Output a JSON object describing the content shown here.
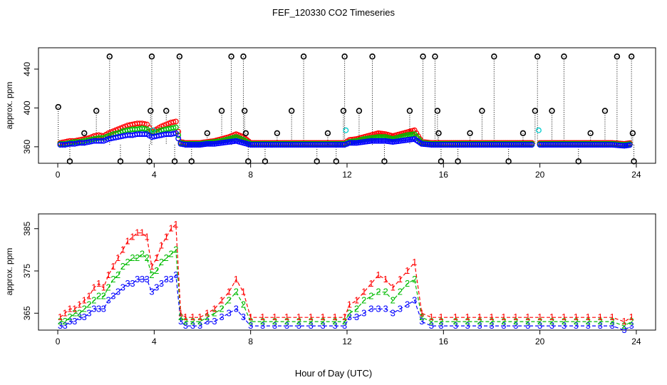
{
  "figure": {
    "title": "FEF_120330  CO2 Timeseries",
    "xlabel": "Hour of Day (UTC)"
  },
  "colors": {
    "series_0": "#000000",
    "series_1": "#ff0000",
    "series_2": "#00bb00",
    "series_3": "#0000ff",
    "series_cyan": "#00cccc"
  },
  "chart_data": [
    {
      "type": "scatter",
      "title": "FEF_120330  CO2 Timeseries",
      "xlabel": "",
      "ylabel": "approx. ppm",
      "xlim": [
        -0.8,
        24.8
      ],
      "ylim": [
        343,
        462
      ],
      "xticks": [
        0,
        4,
        8,
        12,
        16,
        20,
        24
      ],
      "xtick_labels": [
        "0",
        "4",
        "8",
        "12",
        "16",
        "20",
        "24"
      ],
      "yticks": [
        360,
        400,
        440
      ],
      "ytick_labels": [
        "360",
        "400",
        "440"
      ],
      "marker": "o",
      "baseline_series": {
        "name": "0",
        "x": [
          0.02,
          0.5,
          1.1,
          1.6,
          2.15,
          2.6,
          3.8,
          3.85,
          3.9,
          4.5,
          4.85,
          5.05,
          5.55,
          6.2,
          6.8,
          7.2,
          7.7,
          7.75,
          7.8,
          7.9,
          8.6,
          9.1,
          9.7,
          10.2,
          10.75,
          11.2,
          11.55,
          11.85,
          11.9,
          12.5,
          13.05,
          13.55,
          14.6,
          15.15,
          15.65,
          15.75,
          15.8,
          15.9,
          16.6,
          17.1,
          17.6,
          18.1,
          18.7,
          19.3,
          19.8,
          19.9,
          20.5,
          21.0,
          21.6,
          22.1,
          22.7,
          23.2,
          23.8,
          23.85,
          23.9
        ],
        "y": [
          401,
          345,
          374,
          397,
          453,
          345,
          345,
          397,
          453,
          397,
          345,
          453,
          345,
          374,
          397,
          453,
          453,
          397,
          374,
          345,
          345,
          374,
          397,
          453,
          345,
          374,
          345,
          397,
          453,
          397,
          453,
          345,
          397,
          453,
          453,
          397,
          374,
          345,
          345,
          374,
          397,
          453,
          345,
          374,
          397,
          453,
          397,
          453,
          345,
          374,
          397,
          453,
          453,
          374,
          345
        ]
      },
      "series": [
        {
          "name": "1",
          "x": [
            0.1,
            0.3,
            0.5,
            0.7,
            0.9,
            1.1,
            1.3,
            1.5,
            1.7,
            1.9,
            2.1,
            2.3,
            2.5,
            2.7,
            2.9,
            3.1,
            3.3,
            3.5,
            3.7,
            3.9,
            4.1,
            4.3,
            4.5,
            4.7,
            4.9,
            5.1,
            5.3,
            5.6,
            5.9,
            6.2,
            6.5,
            6.8,
            7.1,
            7.4,
            7.7,
            8.0,
            8.5,
            9.0,
            9.5,
            10.0,
            10.5,
            11.0,
            11.5,
            11.9,
            12.1,
            12.4,
            12.7,
            13.0,
            13.3,
            13.6,
            13.9,
            14.2,
            14.5,
            14.8,
            15.1,
            15.5,
            15.9,
            16.5,
            17.0,
            17.5,
            18.0,
            18.5,
            19.0,
            19.5,
            20.0,
            20.5,
            21.0,
            21.5,
            22.0,
            22.5,
            23.0,
            23.5,
            23.8
          ],
          "y": [
            364,
            365,
            366,
            366,
            367,
            368,
            369,
            371,
            372,
            371,
            374,
            376,
            378,
            380,
            382,
            383,
            384,
            384,
            383,
            376,
            378,
            381,
            383,
            385,
            386,
            365,
            364,
            364,
            364,
            365,
            366,
            368,
            370,
            373,
            370,
            364,
            364,
            364,
            364,
            364,
            364,
            364,
            364,
            364,
            367,
            368,
            370,
            372,
            374,
            373,
            371,
            373,
            375,
            377,
            365,
            364,
            364,
            364,
            364,
            364,
            364,
            364,
            364,
            364,
            364,
            364,
            364,
            364,
            364,
            364,
            364,
            363,
            364
          ]
        },
        {
          "name": "2",
          "x": [
            0.1,
            0.3,
            0.5,
            0.7,
            0.9,
            1.1,
            1.3,
            1.5,
            1.7,
            1.9,
            2.1,
            2.3,
            2.5,
            2.7,
            2.9,
            3.1,
            3.3,
            3.5,
            3.7,
            3.9,
            4.1,
            4.3,
            4.5,
            4.7,
            4.9,
            5.1,
            5.3,
            5.6,
            5.9,
            6.2,
            6.5,
            6.8,
            7.1,
            7.4,
            7.7,
            8.0,
            8.5,
            9.0,
            9.5,
            10.0,
            10.5,
            11.0,
            11.5,
            11.9,
            12.1,
            12.4,
            12.7,
            13.0,
            13.3,
            13.6,
            13.9,
            14.2,
            14.5,
            14.8,
            15.1,
            15.5,
            15.9,
            16.5,
            17.0,
            17.5,
            18.0,
            18.5,
            19.0,
            19.5,
            20.0,
            20.5,
            21.0,
            21.5,
            22.0,
            22.5,
            23.0,
            23.5,
            23.8
          ],
          "y": [
            363,
            363,
            364,
            365,
            365,
            366,
            367,
            368,
            369,
            369,
            371,
            373,
            374,
            376,
            377,
            378,
            378,
            379,
            378,
            374,
            375,
            377,
            378,
            379,
            380,
            364,
            363,
            363,
            363,
            364,
            365,
            366,
            368,
            370,
            367,
            363,
            363,
            363,
            363,
            363,
            363,
            363,
            363,
            363,
            365,
            366,
            368,
            369,
            370,
            370,
            368,
            370,
            372,
            373,
            364,
            363,
            363,
            363,
            363,
            363,
            363,
            363,
            363,
            363,
            363,
            363,
            363,
            363,
            363,
            363,
            363,
            362,
            363
          ]
        },
        {
          "name": "3",
          "x": [
            0.1,
            0.3,
            0.5,
            0.7,
            0.9,
            1.1,
            1.3,
            1.5,
            1.7,
            1.9,
            2.1,
            2.3,
            2.5,
            2.7,
            2.9,
            3.1,
            3.3,
            3.5,
            3.7,
            3.9,
            4.1,
            4.3,
            4.5,
            4.7,
            4.9,
            5.1,
            5.3,
            5.6,
            5.9,
            6.2,
            6.5,
            6.8,
            7.1,
            7.4,
            7.7,
            8.0,
            8.5,
            9.0,
            9.5,
            10.0,
            10.5,
            11.0,
            11.5,
            11.9,
            12.1,
            12.4,
            12.7,
            13.0,
            13.3,
            13.6,
            13.9,
            14.2,
            14.5,
            14.8,
            15.1,
            15.5,
            15.9,
            16.5,
            17.0,
            17.5,
            18.0,
            18.5,
            19.0,
            19.5,
            20.0,
            20.5,
            21.0,
            21.5,
            22.0,
            22.5,
            23.0,
            23.5,
            23.8
          ],
          "y": [
            362,
            362,
            363,
            363,
            364,
            364,
            365,
            366,
            366,
            366,
            368,
            369,
            370,
            371,
            372,
            372,
            373,
            373,
            373,
            370,
            371,
            372,
            373,
            373,
            374,
            363,
            362,
            362,
            362,
            363,
            363,
            364,
            365,
            366,
            364,
            362,
            362,
            362,
            362,
            362,
            362,
            362,
            362,
            362,
            364,
            364,
            365,
            366,
            366,
            366,
            365,
            366,
            367,
            368,
            363,
            362,
            362,
            362,
            362,
            362,
            362,
            362,
            362,
            362,
            362,
            362,
            362,
            362,
            362,
            362,
            362,
            361,
            362
          ]
        },
        {
          "name": "cyan",
          "x": [
            3.95,
            11.95,
            19.95
          ],
          "y": [
            377,
            377,
            377
          ]
        }
      ]
    },
    {
      "type": "line",
      "title": "",
      "xlabel": "Hour of Day (UTC)",
      "ylabel": "approx. ppm",
      "xlim": [
        -0.8,
        24.8
      ],
      "ylim": [
        361,
        388.5
      ],
      "xticks": [
        0,
        4,
        8,
        12,
        16,
        20,
        24
      ],
      "xtick_labels": [
        "0",
        "4",
        "8",
        "12",
        "16",
        "20",
        "24"
      ],
      "yticks": [
        365,
        375,
        385
      ],
      "ytick_labels": [
        "365",
        "375",
        "385"
      ],
      "marker": "series number",
      "series": [
        {
          "name": "1",
          "x": [
            0.1,
            0.3,
            0.5,
            0.7,
            0.9,
            1.1,
            1.3,
            1.5,
            1.7,
            1.9,
            2.1,
            2.3,
            2.5,
            2.7,
            2.9,
            3.1,
            3.3,
            3.5,
            3.7,
            3.9,
            4.1,
            4.3,
            4.5,
            4.7,
            4.9,
            5.1,
            5.3,
            5.6,
            5.9,
            6.2,
            6.5,
            6.8,
            7.1,
            7.4,
            7.7,
            8.0,
            8.5,
            9.0,
            9.5,
            10.0,
            10.5,
            11.0,
            11.5,
            11.9,
            12.1,
            12.4,
            12.7,
            13.0,
            13.3,
            13.6,
            13.9,
            14.2,
            14.5,
            14.8,
            15.1,
            15.5,
            15.9,
            16.5,
            17.0,
            17.5,
            18.0,
            18.5,
            19.0,
            19.5,
            20.0,
            20.5,
            21.0,
            21.5,
            22.0,
            22.5,
            23.0,
            23.5,
            23.8
          ],
          "y": [
            364,
            365,
            366,
            366,
            367,
            368,
            369,
            371,
            372,
            371,
            374,
            376,
            378,
            380,
            382,
            383,
            384,
            384,
            383,
            376,
            378,
            381,
            383,
            385,
            386,
            365,
            364,
            364,
            364,
            365,
            366,
            368,
            370,
            373,
            370,
            364,
            364,
            364,
            364,
            364,
            364,
            364,
            364,
            364,
            367,
            368,
            370,
            372,
            374,
            373,
            371,
            373,
            375,
            377,
            365,
            364,
            364,
            364,
            364,
            364,
            364,
            364,
            364,
            364,
            364,
            364,
            364,
            364,
            364,
            364,
            364,
            363,
            364
          ]
        },
        {
          "name": "2",
          "x": [
            0.1,
            0.3,
            0.5,
            0.7,
            0.9,
            1.1,
            1.3,
            1.5,
            1.7,
            1.9,
            2.1,
            2.3,
            2.5,
            2.7,
            2.9,
            3.1,
            3.3,
            3.5,
            3.7,
            3.9,
            4.1,
            4.3,
            4.5,
            4.7,
            4.9,
            5.1,
            5.3,
            5.6,
            5.9,
            6.2,
            6.5,
            6.8,
            7.1,
            7.4,
            7.7,
            8.0,
            8.5,
            9.0,
            9.5,
            10.0,
            10.5,
            11.0,
            11.5,
            11.9,
            12.1,
            12.4,
            12.7,
            13.0,
            13.3,
            13.6,
            13.9,
            14.2,
            14.5,
            14.8,
            15.1,
            15.5,
            15.9,
            16.5,
            17.0,
            17.5,
            18.0,
            18.5,
            19.0,
            19.5,
            20.0,
            20.5,
            21.0,
            21.5,
            22.0,
            22.5,
            23.0,
            23.5,
            23.8
          ],
          "y": [
            363,
            363,
            364,
            365,
            365,
            366,
            367,
            368,
            369,
            369,
            371,
            373,
            374,
            376,
            377,
            378,
            378,
            379,
            378,
            374,
            375,
            377,
            378,
            379,
            380,
            364,
            363,
            363,
            363,
            364,
            365,
            366,
            368,
            370,
            367,
            363,
            363,
            363,
            363,
            363,
            363,
            363,
            363,
            363,
            365,
            366,
            368,
            369,
            370,
            370,
            368,
            370,
            372,
            373,
            364,
            363,
            363,
            363,
            363,
            363,
            363,
            363,
            363,
            363,
            363,
            363,
            363,
            363,
            363,
            363,
            363,
            362,
            363
          ]
        },
        {
          "name": "3",
          "x": [
            0.1,
            0.3,
            0.5,
            0.7,
            0.9,
            1.1,
            1.3,
            1.5,
            1.7,
            1.9,
            2.1,
            2.3,
            2.5,
            2.7,
            2.9,
            3.1,
            3.3,
            3.5,
            3.7,
            3.9,
            4.1,
            4.3,
            4.5,
            4.7,
            4.9,
            5.1,
            5.3,
            5.6,
            5.9,
            6.2,
            6.5,
            6.8,
            7.1,
            7.4,
            7.7,
            8.0,
            8.5,
            9.0,
            9.5,
            10.0,
            10.5,
            11.0,
            11.5,
            11.9,
            12.1,
            12.4,
            12.7,
            13.0,
            13.3,
            13.6,
            13.9,
            14.2,
            14.5,
            14.8,
            15.1,
            15.5,
            15.9,
            16.5,
            17.0,
            17.5,
            18.0,
            18.5,
            19.0,
            19.5,
            20.0,
            20.5,
            21.0,
            21.5,
            22.0,
            22.5,
            23.0,
            23.5,
            23.8
          ],
          "y": [
            362,
            362,
            363,
            363,
            364,
            364,
            365,
            366,
            366,
            366,
            368,
            369,
            370,
            371,
            372,
            372,
            373,
            373,
            373,
            370,
            371,
            372,
            373,
            373,
            374,
            363,
            362,
            362,
            362,
            363,
            363,
            364,
            365,
            366,
            364,
            362,
            362,
            362,
            362,
            362,
            362,
            362,
            362,
            362,
            364,
            364,
            365,
            366,
            366,
            366,
            365,
            366,
            367,
            368,
            363,
            362,
            362,
            362,
            362,
            362,
            362,
            362,
            362,
            362,
            362,
            362,
            362,
            362,
            362,
            362,
            362,
            361,
            362
          ]
        }
      ]
    }
  ]
}
